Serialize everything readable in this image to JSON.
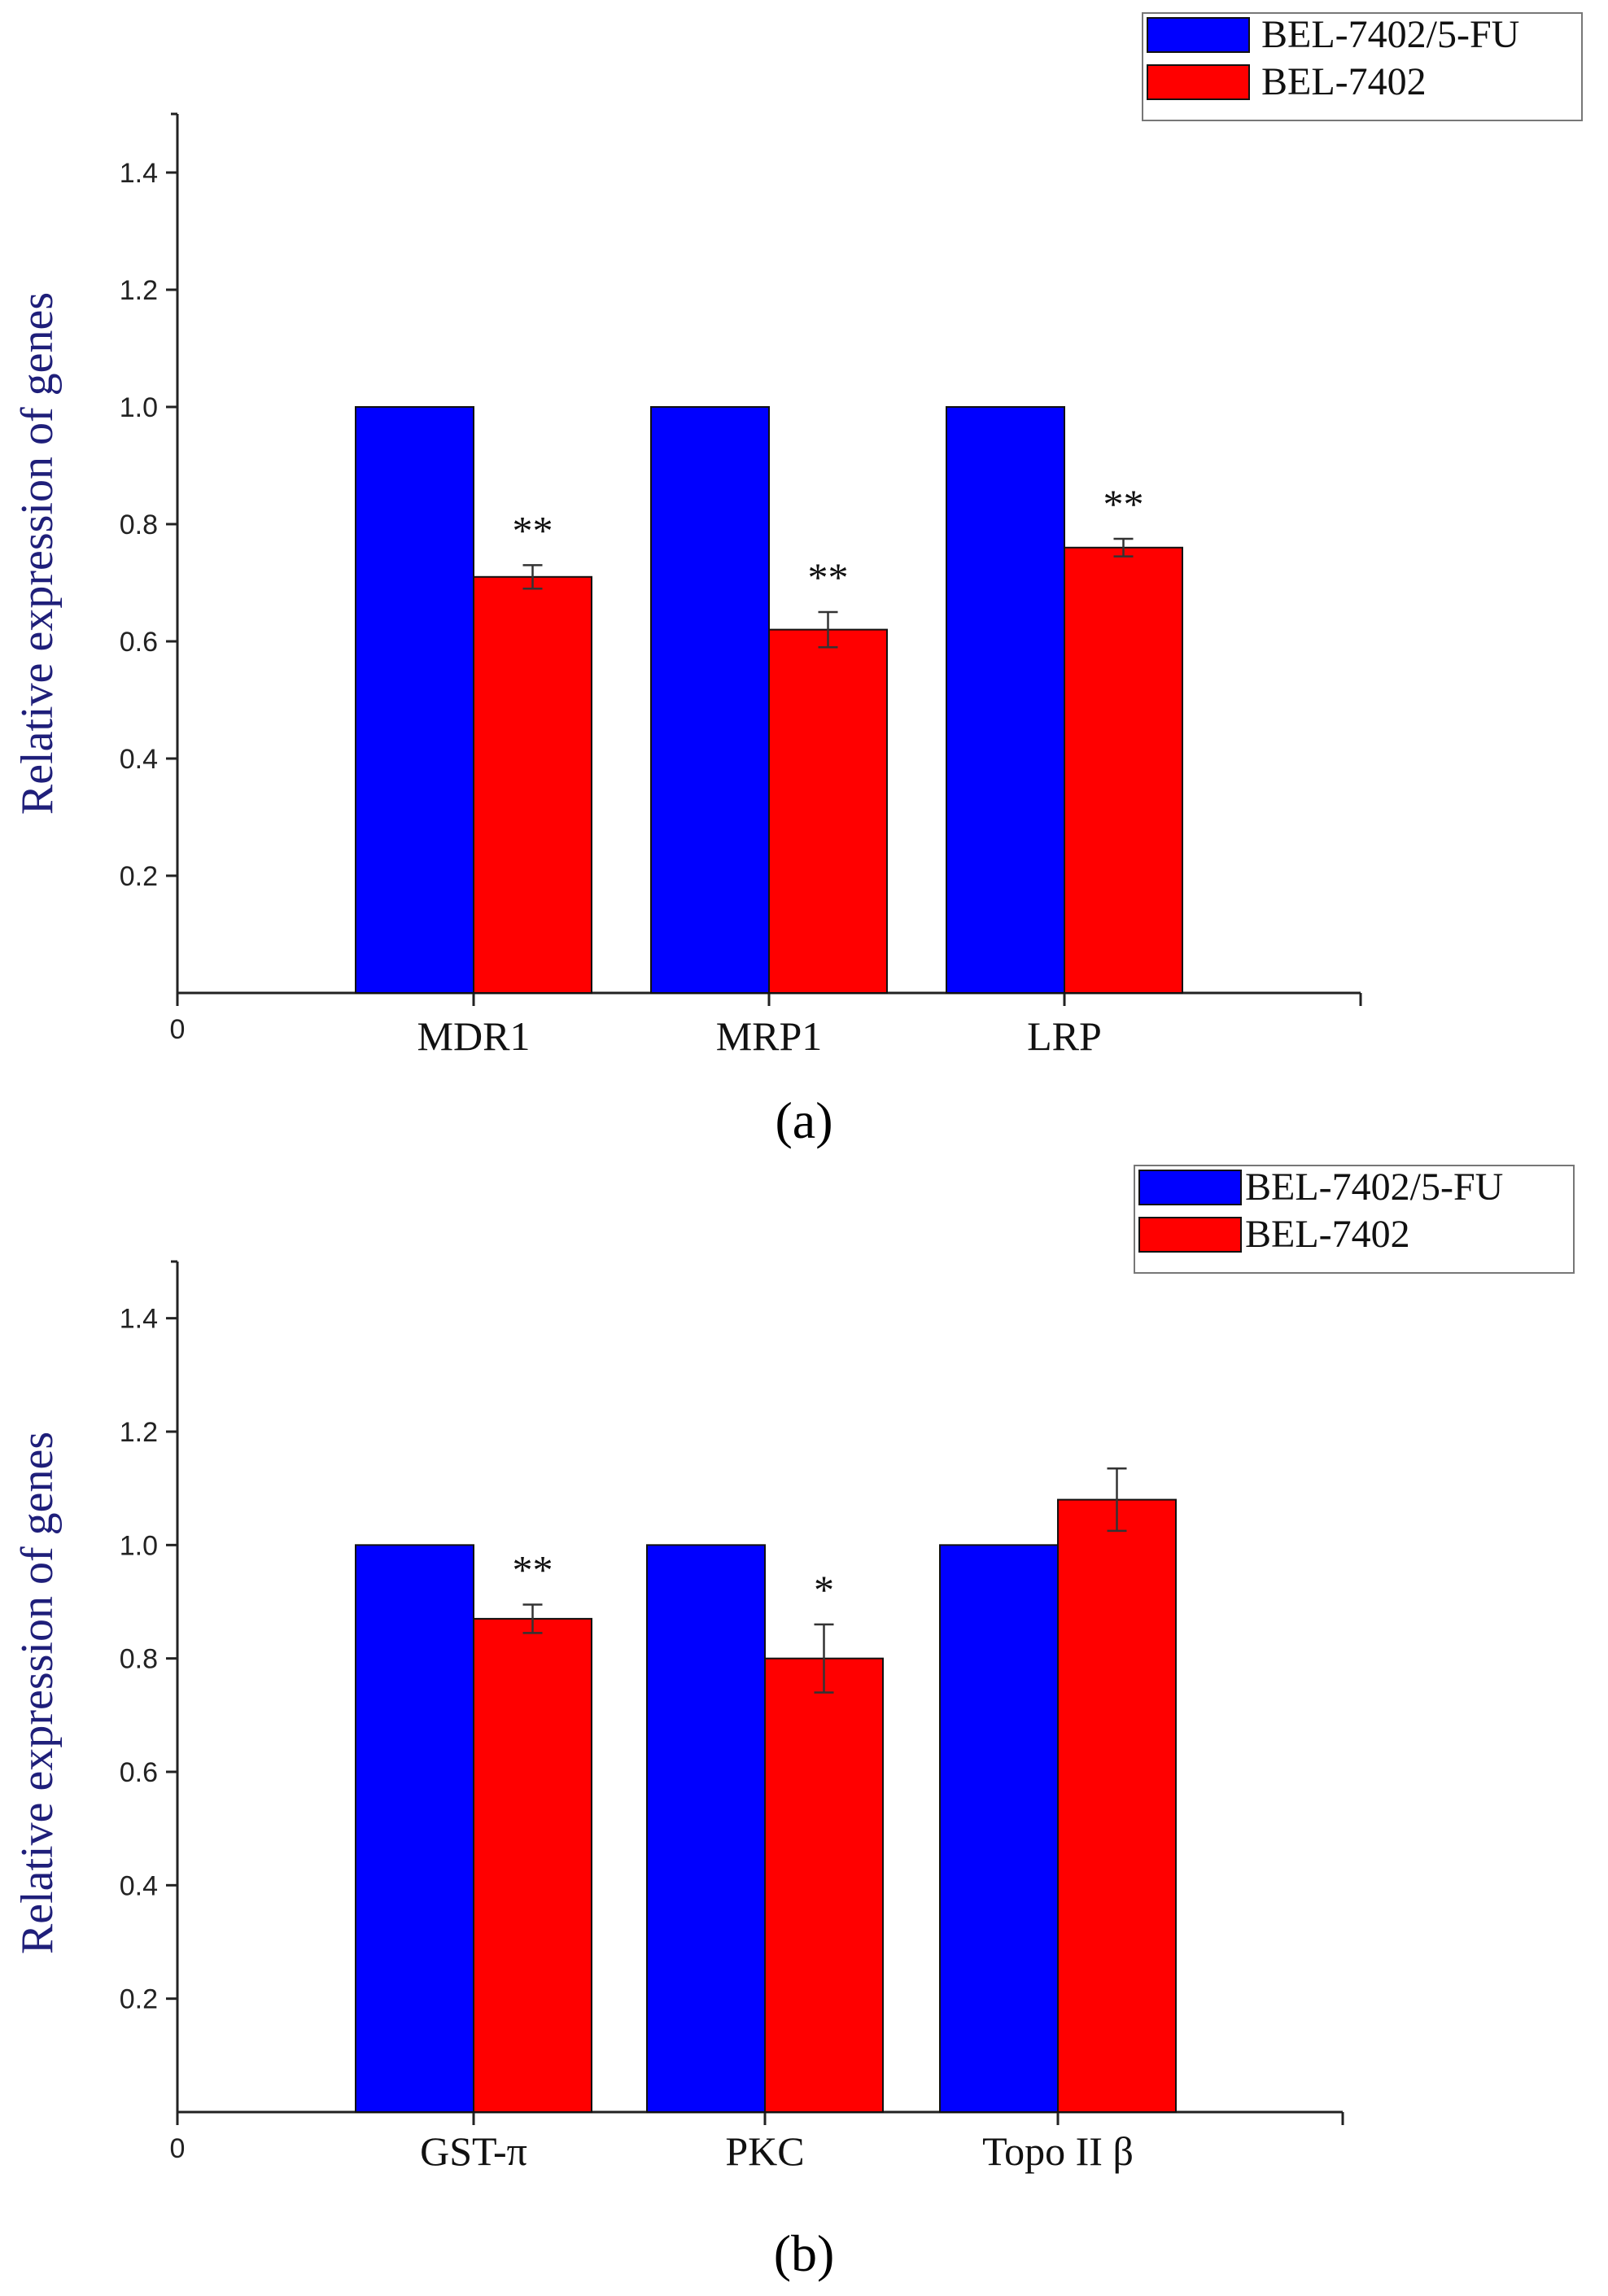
{
  "colors": {
    "series_blue": "#0000ff",
    "series_red": "#ff0000",
    "axis_title": "#1f1f7a",
    "axis": "#222222"
  },
  "chart_data": [
    {
      "type": "bar",
      "panel_label": "(a)",
      "categories": [
        "MDR1",
        "MRP1",
        "LRP"
      ],
      "series": [
        {
          "name": "BEL-7402/5-FU",
          "values": [
            1.0,
            1.0,
            1.0
          ],
          "errors": [
            0,
            0,
            0
          ],
          "color": "#0000ff"
        },
        {
          "name": "BEL-7402",
          "values": [
            0.71,
            0.62,
            0.76
          ],
          "errors": [
            0.02,
            0.03,
            0.015
          ],
          "color": "#ff0000"
        }
      ],
      "significance": [
        "**",
        "**",
        "**"
      ],
      "xlabel": "",
      "ylabel": "Relative expression of genes",
      "ylim": [
        0,
        1.5
      ],
      "yticks": [
        0.2,
        0.4,
        0.6,
        0.8,
        1.0,
        1.2,
        1.4
      ],
      "ytick_labels": [
        "0.2",
        "0.4",
        "0.6",
        "0.8",
        "1.0",
        "1.2",
        "1.4"
      ],
      "origin_label": "0",
      "grid": false,
      "legend_position": "top-right"
    },
    {
      "type": "bar",
      "panel_label": "(b)",
      "categories": [
        "GST-π",
        "PKC",
        "Topo II β"
      ],
      "series": [
        {
          "name": "BEL-7402/5-FU",
          "values": [
            1.0,
            1.0,
            1.0
          ],
          "errors": [
            0,
            0,
            0
          ],
          "color": "#0000ff"
        },
        {
          "name": "BEL-7402",
          "values": [
            0.87,
            0.8,
            1.08
          ],
          "errors": [
            0.025,
            0.06,
            0.055
          ],
          "color": "#ff0000"
        }
      ],
      "significance": [
        "**",
        "*",
        ""
      ],
      "xlabel": "",
      "ylabel": "Relative expression of genes",
      "ylim": [
        0,
        1.5
      ],
      "yticks": [
        0.2,
        0.4,
        0.6,
        0.8,
        1.0,
        1.2,
        1.4
      ],
      "ytick_labels": [
        "0.2",
        "0.4",
        "0.6",
        "0.8",
        "1.0",
        "1.2",
        "1.4"
      ],
      "origin_label": "0",
      "grid": false,
      "legend_position": "top-right"
    }
  ]
}
